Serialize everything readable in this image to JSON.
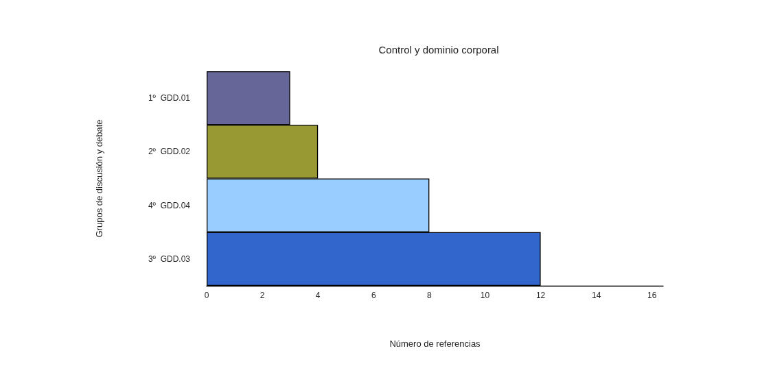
{
  "chart_data": {
    "type": "bar",
    "orientation": "horizontal",
    "title": "Control y dominio corporal",
    "xlabel": "Número de referencias",
    "ylabel": "Grupos de discusión y debate",
    "categories": [
      "1º  GDD.01",
      "2º  GDD.02",
      "4º  GDD.04",
      "3º  GDD.03"
    ],
    "values": [
      3,
      4,
      8,
      12
    ],
    "colors": [
      "#666699",
      "#999933",
      "#99ccff",
      "#3366cc"
    ],
    "xlim": [
      0,
      16.4
    ],
    "xticks": [
      0,
      2,
      4,
      6,
      8,
      10,
      12,
      14,
      16
    ],
    "grid": false
  }
}
